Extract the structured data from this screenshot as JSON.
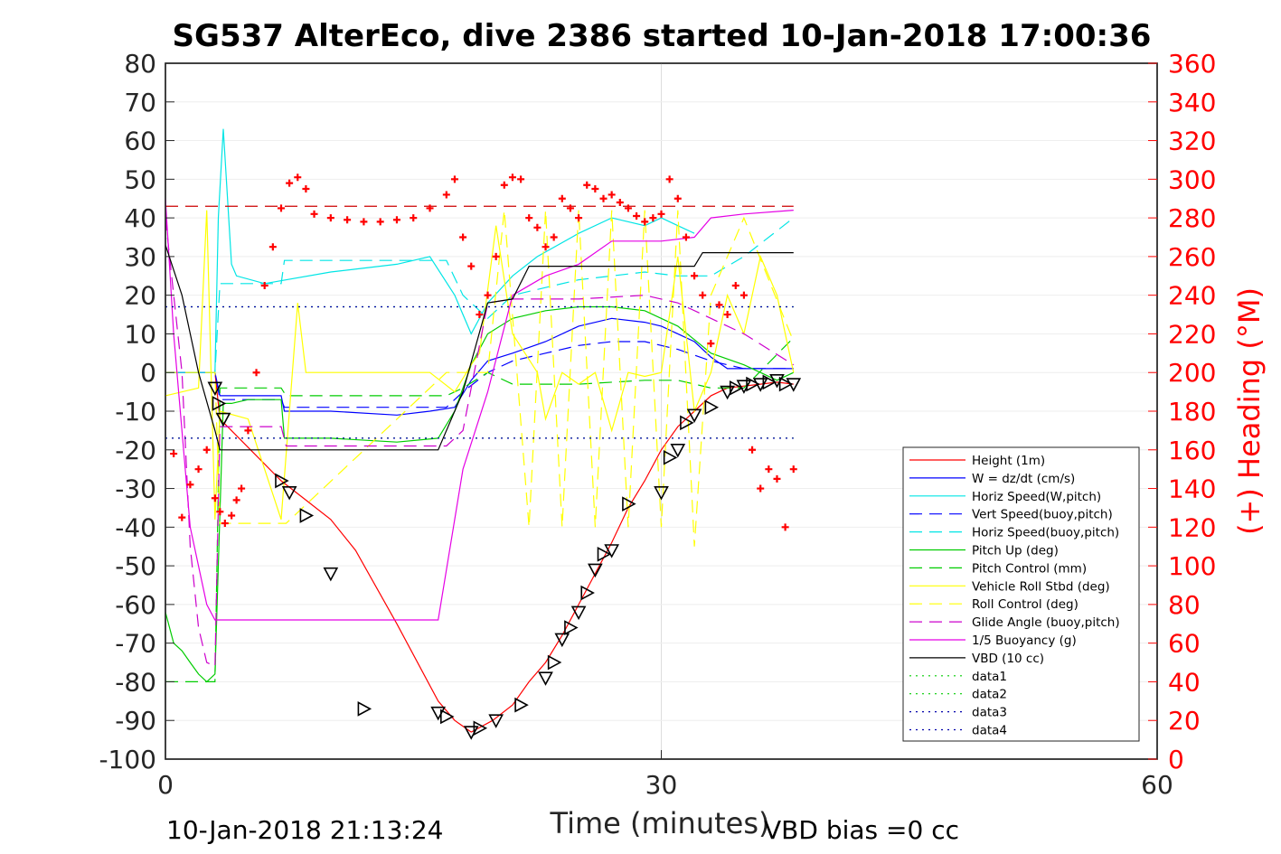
{
  "chart_data": {
    "type": "line",
    "title": "SG537 AlterEco, dive 2386 started 10-Jan-2018 17:00:36",
    "xlabel": "Time (minutes)",
    "ylabel_right": "(+) Heading (°M)",
    "footer_left": "10-Jan-2018 21:13:24",
    "footer_right": "VBD bias =0 cc",
    "xlim": [
      0,
      60
    ],
    "ylim_left": [
      -100,
      80
    ],
    "ylim_right": [
      0,
      360
    ],
    "x_ticks": [
      "0",
      "30",
      "60"
    ],
    "y_ticks_left": [
      "80",
      "70",
      "60",
      "50",
      "40",
      "30",
      "20",
      "10",
      "0",
      "-10",
      "-20",
      "-30",
      "-40",
      "-50",
      "-60",
      "-70",
      "-80",
      "-90",
      "-100"
    ],
    "y_ticks_right": [
      "360",
      "340",
      "320",
      "300",
      "280",
      "260",
      "240",
      "220",
      "200",
      "180",
      "160",
      "140",
      "120",
      "100",
      "80",
      "60",
      "40",
      "20",
      "0"
    ],
    "grid": "x only",
    "legend_position": "lower-right",
    "colors": {
      "height": "#ff0000",
      "w": "#0000ff",
      "horiz_w": "#00e5e5",
      "vert_buoy": "#0000ff",
      "horiz_buoy": "#00e5e5",
      "pitch": "#00cc00",
      "pitch_ctrl": "#00cc00",
      "roll": "#ffff00",
      "roll_ctrl": "#ffff00",
      "glide": "#cc00cc",
      "buoy": "#e500e5",
      "vbd": "#000000",
      "heading": "#ff0000"
    },
    "series": [
      {
        "name": "Height (1m)",
        "style": "solid",
        "color": "#ff0000",
        "x": [
          0,
          3,
          3.3,
          7,
          8.5,
          10,
          11.5,
          14,
          16.5,
          17.5,
          18.5,
          19.8,
          21,
          22,
          23,
          24,
          25,
          26,
          27,
          28,
          29,
          30,
          31,
          32,
          33,
          34,
          35,
          36,
          37,
          38
        ],
        "y": [
          0,
          0,
          -12,
          -28,
          -33,
          -38,
          -46,
          -65,
          -85,
          -90,
          -93,
          -90,
          -86,
          -80,
          -75,
          -68,
          -60,
          -52,
          -44,
          -35,
          -28,
          -20,
          -14,
          -10,
          -6,
          -4,
          -3.5,
          -3,
          -2.5,
          -3
        ]
      },
      {
        "name": "W = dz/dt (cm/s)",
        "style": "solid",
        "color": "#0000ff",
        "x": [
          0,
          3,
          3.3,
          5,
          7,
          7.2,
          10,
          14,
          16,
          17.5,
          18.5,
          19.5,
          21,
          23,
          25,
          27,
          29,
          30,
          31,
          32,
          33,
          34,
          36,
          38
        ],
        "y": [
          0,
          0,
          -6,
          -6,
          -6,
          -10,
          -10,
          -11,
          -10,
          -9,
          -2,
          3,
          5,
          8,
          12,
          14,
          13,
          12,
          10,
          8,
          4,
          1,
          1,
          1
        ]
      },
      {
        "name": "Horiz Speed(W,pitch)",
        "style": "solid",
        "color": "#00e5e5",
        "x": [
          0,
          3,
          3.2,
          3.5,
          4,
          4.3,
          6,
          10,
          14,
          16,
          17.5,
          18.5,
          19.5,
          21,
          22.5,
          25,
          27,
          29,
          30,
          31,
          32
        ],
        "y": [
          0,
          0,
          40,
          63,
          28,
          25,
          23,
          26,
          28,
          30,
          20,
          10,
          18,
          25,
          30,
          36,
          40,
          38,
          40,
          38,
          36
        ]
      },
      {
        "name": "Vert Speed(buoy,pitch)",
        "style": "dashed",
        "color": "#0000ff",
        "x": [
          0,
          3,
          3.3,
          5,
          7,
          7.2,
          17,
          18,
          19.5,
          21,
          23,
          25,
          27,
          29,
          31,
          33,
          35,
          38
        ],
        "y": [
          0,
          0,
          -7,
          -7,
          -7,
          -9,
          -9,
          -5,
          0,
          3,
          5,
          7,
          8,
          8,
          6,
          3,
          1,
          1
        ]
      },
      {
        "name": "Horiz Speed(buoy,pitch)",
        "style": "dashed",
        "color": "#00e5e5",
        "x": [
          0,
          3,
          3.3,
          5,
          7,
          7.2,
          17,
          18,
          19.5,
          21,
          25,
          29,
          31,
          33,
          35,
          38
        ],
        "y": [
          0,
          0,
          23,
          23,
          23,
          29,
          29,
          20,
          14,
          20,
          24,
          26,
          25,
          25,
          30,
          40
        ]
      },
      {
        "name": "Pitch Up (deg)",
        "style": "solid",
        "color": "#00cc00",
        "x": [
          0,
          0.5,
          1,
          1.5,
          2,
          2.5,
          3,
          3.5,
          4,
          5,
          7,
          7.2,
          10,
          14,
          16.5,
          17.5,
          18.5,
          19.5,
          21,
          23,
          25,
          27,
          29,
          31,
          33,
          35,
          36,
          37,
          38
        ],
        "y": [
          -62,
          -70,
          -72,
          -75,
          -78,
          -80,
          -78,
          -8,
          -8,
          -7,
          -7,
          -17,
          -17,
          -18,
          -17,
          -10,
          2,
          10,
          14,
          16,
          17,
          17,
          16,
          12,
          5,
          2,
          0,
          -2,
          0
        ]
      },
      {
        "name": "Pitch Control (mm)",
        "style": "dashed",
        "color": "#00cc00",
        "x": [
          0,
          3,
          3.3,
          7,
          7.3,
          17,
          18,
          19.5,
          21,
          25,
          29,
          31,
          33,
          35,
          38
        ],
        "y": [
          -80,
          -80,
          -4,
          -4,
          -6,
          -6,
          -4,
          0,
          -3,
          -3,
          -2,
          -2,
          -4,
          -4,
          9
        ]
      },
      {
        "name": "Vehicle Roll Stbd (deg)",
        "style": "solid",
        "color": "#ffff00",
        "x": [
          0,
          2,
          2.5,
          3,
          3.3,
          5,
          7,
          8,
          8.5,
          12,
          16,
          17.5,
          18.5,
          19,
          20,
          21,
          22.5,
          23,
          24,
          25,
          26,
          27,
          28,
          29,
          30,
          31,
          32,
          33,
          34,
          35,
          36,
          37,
          38
        ],
        "y": [
          -6,
          -4,
          42,
          -38,
          -10,
          -12,
          -38,
          18,
          0,
          0,
          0,
          -5,
          2,
          5,
          38,
          10,
          0,
          -12,
          0,
          -3,
          0,
          -15,
          0,
          -1,
          0,
          30,
          -10,
          0,
          20,
          10,
          30,
          20,
          0
        ]
      },
      {
        "name": "Roll Control (deg)",
        "style": "dashed",
        "color": "#ffff00",
        "x": [
          0,
          3,
          3.3,
          7,
          7.3,
          17,
          18,
          19.5,
          20.5,
          22,
          23,
          24,
          25,
          26,
          27,
          28,
          29,
          30,
          31,
          32,
          33,
          35,
          38
        ],
        "y": [
          0,
          0,
          -39,
          -39,
          -39,
          0,
          0,
          0,
          42,
          -40,
          42,
          -40,
          42,
          -40,
          42,
          -40,
          42,
          -40,
          42,
          -45,
          20,
          40,
          8
        ]
      },
      {
        "name": "Glide Angle (buoy,pitch)",
        "style": "dashed",
        "color": "#cc00cc",
        "x": [
          0,
          1,
          1.5,
          2,
          2.5,
          3,
          3.3,
          5,
          7,
          7.3,
          17,
          18,
          19.5,
          21,
          25,
          29,
          31,
          33,
          35,
          38
        ],
        "y": [
          40,
          0,
          -45,
          -66,
          -75,
          -76,
          -14,
          -14,
          -14,
          -19,
          -19,
          -15,
          18,
          19,
          19,
          20,
          18,
          14,
          10,
          2
        ]
      },
      {
        "name": "1/5 Buoyancy (g)",
        "style": "solid",
        "color": "#e500e5",
        "x": [
          0,
          0.5,
          1.5,
          2.5,
          3,
          3.3,
          5,
          10,
          15,
          16.5,
          18,
          19.5,
          21,
          23,
          25,
          27,
          30,
          32,
          33,
          35,
          38
        ],
        "y": [
          45,
          10,
          -40,
          -60,
          -64,
          -64,
          -64,
          -64,
          -64,
          -64,
          -25,
          -5,
          20,
          25,
          28,
          34,
          34,
          35,
          40,
          41,
          42
        ]
      },
      {
        "name": "VBD (10 cc)",
        "style": "solid",
        "color": "#000000",
        "x": [
          0,
          1,
          2,
          3,
          3.3,
          5,
          10,
          16.5,
          18,
          19.5,
          21,
          22,
          25,
          30,
          32,
          32.5,
          35,
          38
        ],
        "y": [
          33,
          20,
          0,
          -15,
          -20,
          -20,
          -20,
          -20,
          -5,
          18,
          19,
          27.5,
          27.5,
          27.5,
          27.5,
          31,
          31,
          31
        ]
      },
      {
        "name": "data1",
        "style": "dotted",
        "color": "#00cc00",
        "x": [
          0,
          38
        ],
        "y": [
          17,
          17
        ]
      },
      {
        "name": "data2",
        "style": "dotted",
        "color": "#00cc00",
        "x": [
          0,
          38
        ],
        "y": [
          -17,
          -17
        ]
      },
      {
        "name": "data3",
        "style": "dotted",
        "color": "#0000aa",
        "x": [
          0,
          38
        ],
        "y": [
          17,
          17
        ]
      },
      {
        "name": "data4",
        "style": "dotted",
        "color": "#0000aa",
        "x": [
          0,
          38
        ],
        "y": [
          -17,
          -17
        ]
      }
    ],
    "reference_line_left": {
      "style": "dashed",
      "color": "#cc0000",
      "y": 43,
      "x": [
        0,
        38
      ]
    },
    "heading_points": {
      "axis": "right",
      "x": [
        0.5,
        1,
        1.5,
        2,
        2.5,
        3,
        3.3,
        3.6,
        4,
        4.3,
        4.6,
        5,
        5.5,
        6,
        6.5,
        7,
        7.5,
        8,
        8.5,
        9,
        10,
        11,
        12,
        13,
        14,
        15,
        16,
        17,
        17.5,
        18,
        18.5,
        19,
        19.5,
        20,
        20.5,
        21,
        21.5,
        22,
        22.5,
        23,
        23.5,
        24,
        24.5,
        25,
        25.5,
        26,
        26.5,
        27,
        27.5,
        28,
        28.5,
        29,
        29.5,
        30,
        30.5,
        31,
        31.5,
        32,
        32.5,
        33,
        33.5,
        34,
        34.5,
        35,
        35.5,
        36,
        36.5,
        37,
        37.5,
        38
      ],
      "y": [
        158,
        125,
        142,
        150,
        160,
        135,
        128,
        122,
        126,
        134,
        140,
        170,
        200,
        245,
        265,
        285,
        298,
        301,
        295,
        282,
        280,
        279,
        278,
        278,
        279,
        280,
        285,
        292,
        300,
        270,
        255,
        230,
        240,
        260,
        297,
        301,
        300,
        280,
        275,
        265,
        270,
        290,
        285,
        280,
        297,
        295,
        290,
        292,
        288,
        285,
        281,
        278,
        280,
        282,
        300,
        290,
        270,
        250,
        240,
        215,
        235,
        230,
        245,
        240,
        160,
        140,
        150,
        145,
        120,
        150
      ]
    },
    "markers": {
      "shape": "triangle",
      "x": [
        3,
        3.2,
        3.5,
        7,
        7.5,
        8.5,
        10,
        12,
        16.5,
        17,
        18.5,
        19,
        20,
        21.5,
        23,
        23.5,
        24,
        24.5,
        25,
        25.5,
        26,
        26.5,
        27,
        28,
        30,
        30.5,
        31,
        31.5,
        32,
        33,
        34,
        34.5,
        35,
        35.5,
        36,
        36.5,
        37,
        37.5,
        38
      ],
      "y": [
        -4,
        -8,
        -12,
        -28,
        -31,
        -37,
        -52,
        -87,
        -88,
        -89,
        -93,
        -92,
        -90,
        -86,
        -79,
        -75,
        -69,
        -66,
        -62,
        -57,
        -51,
        -47,
        -46,
        -34,
        -31,
        -22,
        -20,
        -13,
        -11,
        -9,
        -5,
        -4,
        -3.5,
        -3,
        -3,
        -2.5,
        -2,
        -3,
        -3
      ]
    }
  }
}
